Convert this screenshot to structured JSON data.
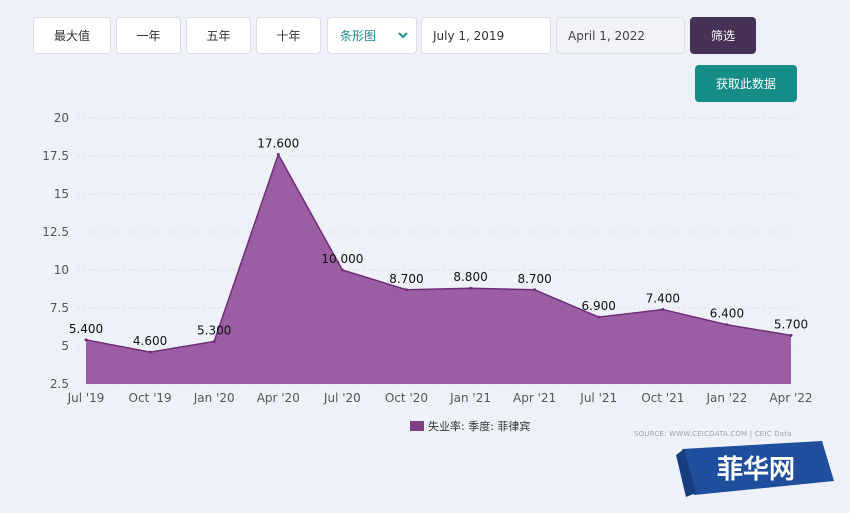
{
  "toolbar": {
    "range_buttons": [
      "最大值",
      "一年",
      "五年",
      "十年"
    ],
    "chart_type_select": "条形图",
    "start_date": "July 1, 2019",
    "end_date": "April 1, 2022",
    "filter_label": "筛选",
    "fetch_label": "获取此数据"
  },
  "legend_label": "失业率: 季度: 菲律宾",
  "source_text": "SOURCE: WWW.CEICDATA.COM | CEIC Data",
  "watermark_text": "菲华网",
  "colors": {
    "area_fill": "#9b5ea4",
    "area_stroke": "#6f2f78",
    "legend_swatch": "#7b3f82",
    "filter_button": "#463256",
    "fetch_button": "#168c86",
    "watermark_bg": "#1f4e9c"
  },
  "chart_data": {
    "type": "area",
    "categories": [
      "Jul '19",
      "Oct '19",
      "Jan '20",
      "Apr '20",
      "Jul '20",
      "Oct '20",
      "Jan '21",
      "Apr '21",
      "Jul '21",
      "Oct '21",
      "Jan '22",
      "Apr '22"
    ],
    "series": [
      {
        "name": "失业率: 季度: 菲律宾",
        "values": [
          5.4,
          4.6,
          5.3,
          17.6,
          10.0,
          8.7,
          8.8,
          8.7,
          6.9,
          7.4,
          6.4,
          5.7
        ],
        "data_labels": [
          "5.400",
          "4.600",
          "5.300",
          "17.600",
          "10.000",
          "8.700",
          "8.800",
          "8.700",
          "6.900",
          "7.400",
          "6.400",
          "5.700"
        ]
      }
    ],
    "y_ticks": [
      "2.5",
      "5",
      "7.5",
      "10",
      "12.5",
      "15",
      "17.5",
      "20"
    ],
    "ylim": [
      2.5,
      20
    ],
    "grid": "horizontal dashed",
    "legend_position": "bottom-center"
  }
}
